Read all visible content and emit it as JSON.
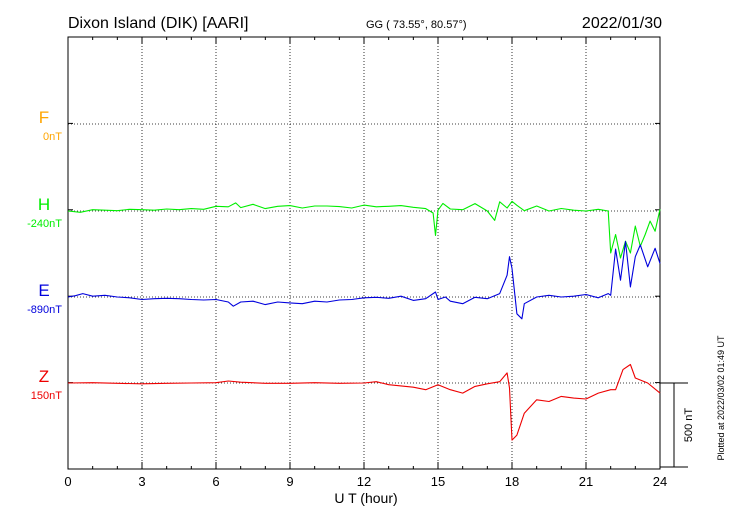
{
  "header": {
    "station": "Dixon Island (DIK)  [AARI]",
    "coords": "GG ( 73.55°,  80.57°)",
    "date": "2022/01/30"
  },
  "footer": {
    "plotted": "Plotted at 2022/03/02 01:49 UT"
  },
  "chart_data": {
    "type": "line",
    "xlabel": "U T (hour)",
    "xlim": [
      0,
      24
    ],
    "xticks": [
      0,
      3,
      6,
      9,
      12,
      15,
      18,
      21,
      24
    ],
    "units": "nT",
    "scale_bar": {
      "label": "500 nT",
      "value": 500
    },
    "grid": true,
    "series": [
      {
        "name": "F",
        "baseline_label": "0nT",
        "color": "#ffa500",
        "x": [],
        "y": []
      },
      {
        "name": "H",
        "baseline_label": "-240nT",
        "color": "#00ee00",
        "x": [
          0,
          0.5,
          1,
          1.5,
          2,
          2.5,
          3,
          3.5,
          4,
          4.5,
          5,
          5.5,
          6,
          6.5,
          6.8,
          7,
          7.5,
          8,
          8.5,
          9,
          9.5,
          10,
          10.5,
          11,
          11.5,
          12,
          12.5,
          13,
          13.5,
          14,
          14.5,
          14.8,
          14.9,
          15,
          15.2,
          15.5,
          16,
          16.5,
          17,
          17.3,
          17.5,
          17.8,
          18,
          18.2,
          18.5,
          19,
          19.5,
          20,
          20.5,
          21,
          21.5,
          21.9,
          22,
          22.2,
          22.4,
          22.6,
          22.8,
          23,
          23.2,
          23.4,
          23.6,
          23.8,
          24
        ],
        "y": [
          -240,
          -248,
          -232,
          -235,
          -238,
          -230,
          -232,
          -235,
          -228,
          -232,
          -226,
          -230,
          -212,
          -215,
          -192,
          -220,
          -200,
          -226,
          -212,
          -208,
          -222,
          -210,
          -210,
          -214,
          -222,
          -205,
          -215,
          -212,
          -208,
          -218,
          -226,
          -252,
          -385,
          -235,
          -195,
          -228,
          -232,
          -196,
          -240,
          -296,
          -185,
          -222,
          -182,
          -206,
          -238,
          -210,
          -240,
          -225,
          -235,
          -240,
          -230,
          -240,
          -490,
          -380,
          -520,
          -420,
          -490,
          -330,
          -450,
          -380,
          -300,
          -360,
          -230
        ]
      },
      {
        "name": "E",
        "baseline_label": "-890nT",
        "color": "#0000dd",
        "x": [
          0,
          0.3,
          0.6,
          1,
          1.5,
          2,
          2.5,
          3,
          3.5,
          4,
          4.5,
          5,
          5.5,
          6,
          6.5,
          6.7,
          7,
          7.5,
          8,
          8.5,
          9,
          9.5,
          10,
          10.5,
          11,
          11.5,
          12,
          12.5,
          13,
          13.5,
          14,
          14.5,
          14.9,
          15,
          15.3,
          15.5,
          16,
          16.5,
          17,
          17.5,
          17.8,
          17.9,
          18,
          18.2,
          18.4,
          18.5,
          19,
          19.5,
          20,
          20.5,
          21,
          21.5,
          21.9,
          22,
          22.2,
          22.4,
          22.6,
          22.8,
          23,
          23.2,
          23.5,
          23.8,
          24
        ],
        "y": [
          -890,
          -882,
          -870,
          -885,
          -880,
          -890,
          -895,
          -905,
          -900,
          -898,
          -900,
          -905,
          -908,
          -905,
          -920,
          -945,
          -920,
          -915,
          -935,
          -920,
          -925,
          -930,
          -915,
          -920,
          -908,
          -905,
          -895,
          -892,
          -898,
          -885,
          -910,
          -900,
          -860,
          -905,
          -890,
          -915,
          -930,
          -892,
          -900,
          -870,
          -760,
          -650,
          -720,
          -990,
          -1020,
          -930,
          -890,
          -880,
          -890,
          -885,
          -875,
          -895,
          -870,
          -880,
          -605,
          -790,
          -560,
          -830,
          -650,
          -580,
          -710,
          -600,
          -690
        ]
      },
      {
        "name": "Z",
        "baseline_label": "150nT",
        "color": "#ee0000",
        "x": [
          0,
          1,
          2,
          3,
          4,
          5,
          6,
          6.5,
          7,
          8,
          9,
          10,
          11,
          12,
          12.5,
          13,
          14,
          14.5,
          15,
          15.5,
          16,
          16.5,
          17,
          17.5,
          17.8,
          17.9,
          18,
          18.2,
          18.5,
          19,
          19.5,
          20,
          20.5,
          21,
          21.5,
          22,
          22.2,
          22.5,
          22.8,
          23,
          23.5,
          24
        ],
        "y": [
          150,
          152,
          148,
          145,
          148,
          150,
          152,
          162,
          155,
          148,
          148,
          152,
          148,
          150,
          158,
          140,
          125,
          110,
          140,
          110,
          90,
          130,
          145,
          158,
          210,
          120,
          -190,
          -160,
          -30,
          50,
          40,
          70,
          60,
          55,
          90,
          110,
          110,
          230,
          260,
          180,
          150,
          90
        ]
      }
    ]
  }
}
